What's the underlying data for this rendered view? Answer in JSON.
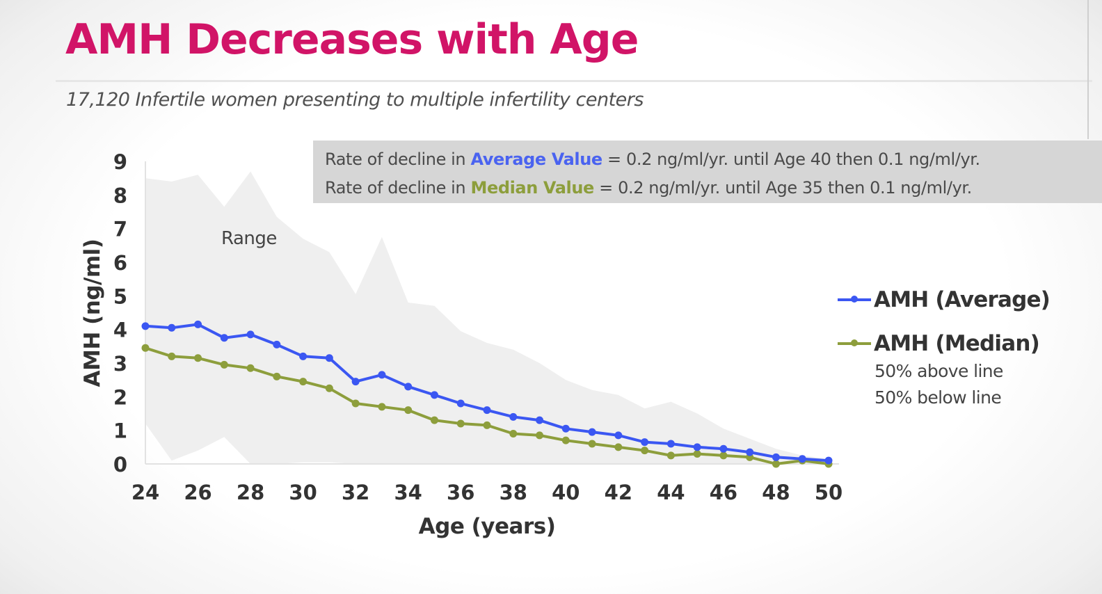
{
  "title": "AMH Decreases with Age",
  "subtitle": "17,120 Infertile women presenting to multiple infertility centers",
  "info_box": {
    "line1_prefix": "Rate of decline in ",
    "line1_keyword": "Average Value",
    "line1_suffix": " = 0.2 ng/ml/yr. until Age 40 then 0.1 ng/ml/yr.",
    "line2_prefix": "Rate of decline in ",
    "line2_keyword": "Median Value",
    "line2_suffix": " = 0.2 ng/ml/yr. until Age 35 then 0.1 ng/ml/yr."
  },
  "legend": {
    "average_label": "AMH (Average)",
    "median_label": "AMH (Median)",
    "median_note_1": "50% above line",
    "median_note_2": "50% below line"
  },
  "range_label": "Range",
  "colors": {
    "title": "#d11467",
    "average": "#3b57f2",
    "median": "#8d9e3c",
    "range": "#efefef"
  },
  "chart_data": {
    "type": "line",
    "title": "AMH Decreases with Age",
    "xlabel": "Age (years)",
    "ylabel": "AMH (ng/ml)",
    "xlim": [
      24,
      50
    ],
    "ylim": [
      0,
      9
    ],
    "x_ticks": [
      24,
      26,
      28,
      30,
      32,
      34,
      36,
      38,
      40,
      42,
      44,
      46,
      48,
      50
    ],
    "y_ticks": [
      0,
      1,
      2,
      3,
      4,
      5,
      6,
      7,
      8,
      9
    ],
    "x": [
      24,
      25,
      26,
      27,
      28,
      29,
      30,
      31,
      32,
      33,
      34,
      35,
      36,
      37,
      38,
      39,
      40,
      41,
      42,
      43,
      44,
      45,
      46,
      47,
      48,
      49,
      50
    ],
    "series": [
      {
        "name": "AMH (Average)",
        "values": [
          4.1,
          4.05,
          4.15,
          3.75,
          3.85,
          3.55,
          3.2,
          3.15,
          2.45,
          2.65,
          2.3,
          2.05,
          1.8,
          1.6,
          1.4,
          1.3,
          1.05,
          0.95,
          0.85,
          0.65,
          0.6,
          0.5,
          0.45,
          0.35,
          0.2,
          0.15,
          0.1
        ]
      },
      {
        "name": "AMH (Median)",
        "values": [
          3.45,
          3.2,
          3.15,
          2.95,
          2.85,
          2.6,
          2.45,
          2.25,
          1.8,
          1.7,
          1.6,
          1.3,
          1.2,
          1.15,
          0.9,
          0.85,
          0.7,
          0.6,
          0.5,
          0.4,
          0.25,
          0.3,
          0.25,
          0.2,
          0.0,
          0.1,
          0.0
        ]
      }
    ],
    "range": {
      "name": "Range",
      "upper": [
        8.5,
        8.4,
        8.6,
        7.65,
        8.7,
        7.35,
        6.7,
        6.3,
        5.05,
        6.75,
        4.8,
        4.7,
        3.95,
        3.6,
        3.4,
        3.0,
        2.5,
        2.2,
        2.05,
        1.65,
        1.85,
        1.5,
        1.05,
        0.75,
        0.45,
        0.25,
        0.15
      ],
      "lower": [
        1.2,
        0.1,
        0.4,
        0.8,
        0.0,
        0.0,
        0.05,
        0.05,
        0.0,
        0.0,
        0.0,
        0.0,
        0.0,
        0.0,
        0.0,
        0.0,
        0.0,
        0.0,
        0.0,
        0.0,
        0.0,
        0.0,
        0.0,
        0.0,
        0.0,
        0.0,
        0.0
      ]
    }
  }
}
